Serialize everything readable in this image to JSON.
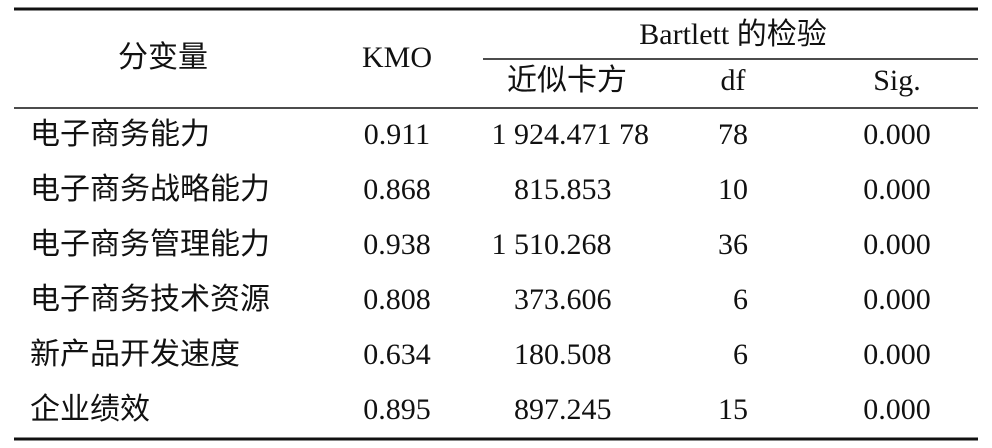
{
  "table": {
    "header": {
      "variable": "分变量",
      "kmo": "KMO",
      "bartlett": "Bartlett 的检验",
      "chi": "近似卡方",
      "df": "df",
      "sig": "Sig."
    },
    "rows": [
      [
        "电子商务能力",
        "0.911",
        "1 924.471 78",
        "78",
        "0.000"
      ],
      [
        "电子商务战略能力",
        "0.868",
        "815.853",
        "10",
        "0.000"
      ],
      [
        "电子商务管理能力",
        "0.938",
        "1 510.268",
        "36",
        "0.000"
      ],
      [
        "电子商务技术资源",
        "0.808",
        "373.606",
        "6",
        "0.000"
      ],
      [
        "新产品开发速度",
        "0.634",
        "180.508",
        "6",
        "0.000"
      ],
      [
        "企业绩效",
        "0.895",
        "897.245",
        "15",
        "0.000"
      ]
    ]
  }
}
